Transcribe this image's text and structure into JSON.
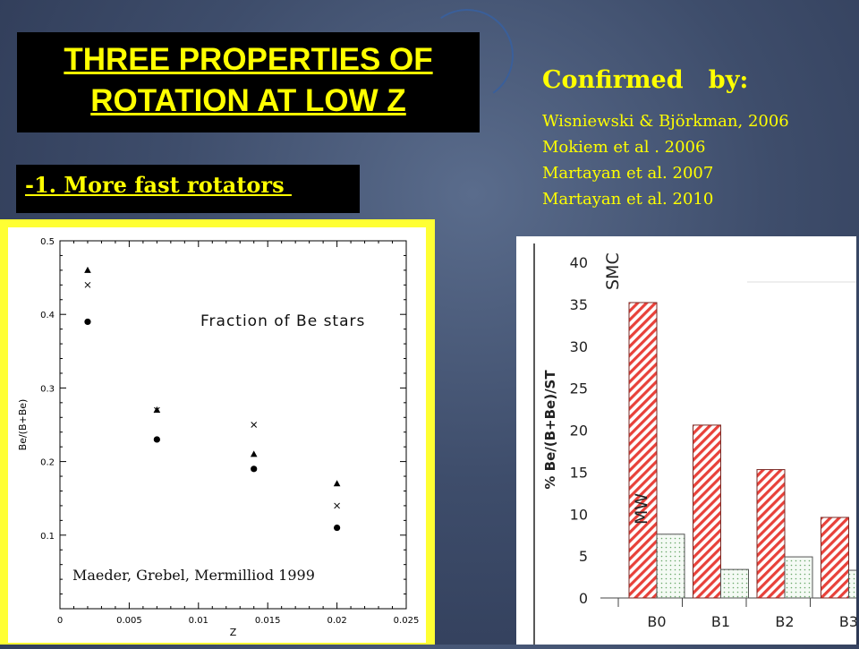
{
  "slide": {
    "title_line1": "THREE  PROPERTIES OF",
    "title_line2": "ROTATION  AT  LOW   Z",
    "subtitle": "-1. More fast rotators ",
    "confirmed_heading": "Confirmed   by:",
    "references": [
      "Wisniewski & Björkman, 2006",
      "Mokiem et al . 2006",
      "Martayan et al. 2007",
      "Martayan et al. 2010"
    ],
    "colors": {
      "title_text": "#ffff00",
      "title_bg": "#000000",
      "background": "#3e4d6b"
    }
  },
  "chart_data": [
    {
      "type": "scatter",
      "xlabel": "Z",
      "ylabel": "Be/(B+Be)",
      "annotation": "Fraction of Be stars",
      "credit": "Maeder, Grebel, Mermilliod  1999",
      "xlim": [
        0,
        0.025
      ],
      "ylim": [
        0,
        0.5
      ],
      "x_ticks": [
        "0",
        "0.005",
        "0.01",
        "0.015",
        "0.02",
        "0.025"
      ],
      "y_ticks": [
        "0.1",
        "0.2",
        "0.3",
        "0.4",
        "0.5"
      ],
      "series": [
        {
          "marker": "triangle",
          "points": [
            [
              0.002,
              0.46
            ],
            [
              0.007,
              0.27
            ],
            [
              0.014,
              0.21
            ],
            [
              0.02,
              0.17
            ]
          ]
        },
        {
          "marker": "cross",
          "points": [
            [
              0.002,
              0.44
            ],
            [
              0.007,
              0.27
            ],
            [
              0.014,
              0.25
            ],
            [
              0.02,
              0.14
            ]
          ]
        },
        {
          "marker": "circle",
          "points": [
            [
              0.002,
              0.39
            ],
            [
              0.007,
              0.23
            ],
            [
              0.014,
              0.19
            ],
            [
              0.02,
              0.11
            ]
          ]
        }
      ]
    },
    {
      "type": "bar",
      "ylabel": "% Be/(B+Be)/ST",
      "ylim": [
        0,
        40
      ],
      "y_ticks": [
        "0",
        "5",
        "10",
        "15",
        "20",
        "25",
        "30",
        "35",
        "40"
      ],
      "categories": [
        "B0",
        "B1",
        "B2",
        "B3"
      ],
      "series": [
        {
          "name": "SMC",
          "color": "#e8413a",
          "values": [
            35.2,
            20.6,
            15.3,
            9.6
          ]
        },
        {
          "name": "MW",
          "color": "#6aa86a",
          "values": [
            7.6,
            3.4,
            4.9,
            3.3
          ]
        }
      ]
    }
  ]
}
